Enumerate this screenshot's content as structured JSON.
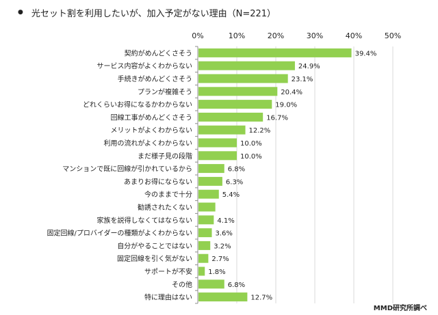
{
  "title_bullet": "●",
  "title": "光セット割を利用したいが、加入予定がない理由（N=221）",
  "source": "MMD研究所調べ",
  "chart_data": {
    "type": "bar",
    "orientation": "horizontal",
    "categories": [
      "契約がめんどくさそう",
      "サービス内容がよくわからない",
      "手続きがめんどくさそう",
      "プランが複雑そう",
      "どれくらいお得になるかわからない",
      "回線工事がめんどくさそう",
      "メリットがよくわからない",
      "利用の流れがよくわからない",
      "まだ様子見の段階",
      "マンションで既に回線が引かれているから",
      "あまりお得にならない",
      "今のままで十分",
      "勧誘されたくない",
      "家族を説得しなくてはならない",
      "固定回線/プロバイダーの種類がよくわからない",
      "自分がやることではない",
      "固定回線を引く気がない",
      "サポートが不安",
      "その他",
      "特に理由はない"
    ],
    "values": [
      39.4,
      24.9,
      23.1,
      20.4,
      19.0,
      16.7,
      12.2,
      10.0,
      10.0,
      6.8,
      6.3,
      5.4,
      4.5,
      4.1,
      3.6,
      3.2,
      2.7,
      1.8,
      6.8,
      12.7
    ],
    "data_labels": [
      "39.4%",
      "24.9%",
      "23.1%",
      "20.4%",
      "19.0%",
      "16.7%",
      "12.2%",
      "10.0%",
      "10.0%",
      "6.8%",
      "6.3%",
      "5.4%",
      "",
      "4.1%",
      "3.6%",
      "3.2%",
      "2.7%",
      "1.8%",
      "6.8%",
      "12.7%"
    ],
    "xlim": [
      0,
      50
    ],
    "xticks": [
      0,
      10,
      20,
      30,
      40,
      50
    ],
    "xtick_labels": [
      "0%",
      "10%",
      "20%",
      "30%",
      "40%",
      "50%"
    ],
    "grid": true,
    "bar_color": "#92d050",
    "grid_color": "#d9d9d9"
  }
}
